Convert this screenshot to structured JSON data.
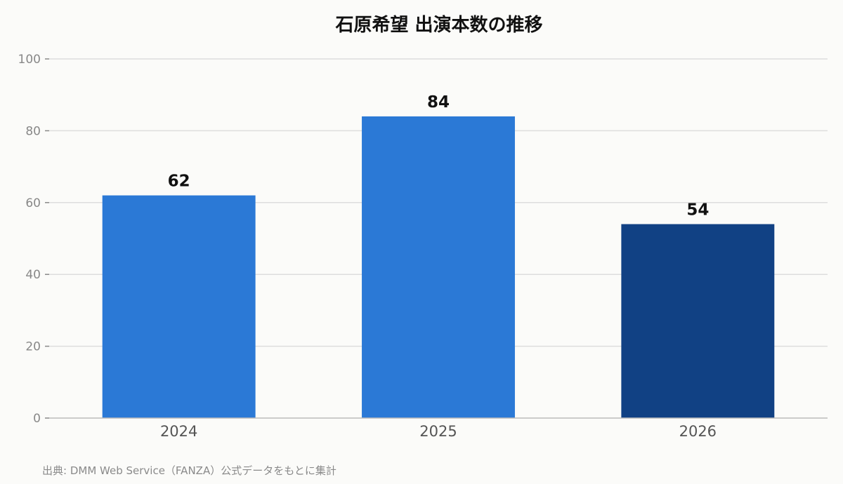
{
  "chart_data": {
    "type": "bar",
    "title": "石原希望 出演本数の推移",
    "categories": [
      "2024",
      "2025",
      "2026"
    ],
    "values": [
      62,
      84,
      54
    ],
    "data_labels": [
      "62",
      "84",
      "54"
    ],
    "ylim": [
      0,
      100
    ],
    "yticks": [
      0,
      20,
      40,
      60,
      80,
      100
    ],
    "xlabel": "",
    "ylabel": "",
    "grid": true,
    "colors": [
      "#2b79d6",
      "#2b79d6",
      "#114184"
    ],
    "source": "出典: DMM Web Service（FANZA）公式データをもとに集計"
  }
}
